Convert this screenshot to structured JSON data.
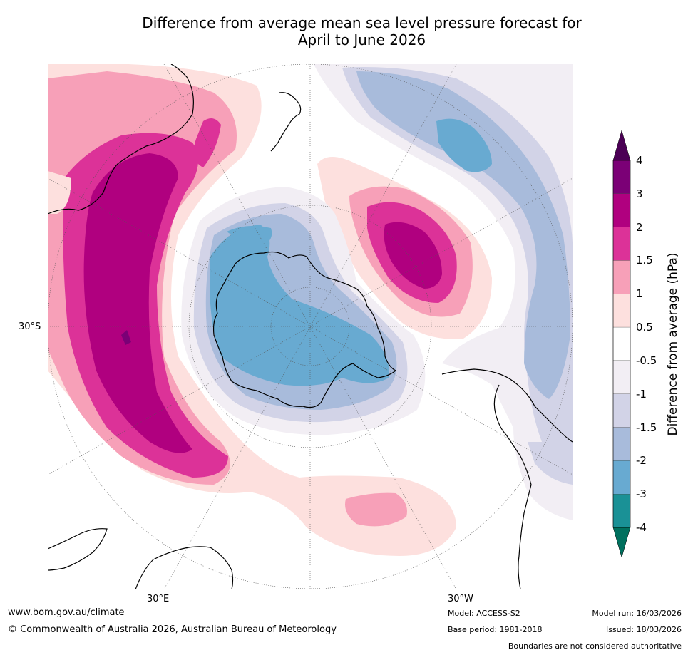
{
  "title_line1": "Difference from average mean sea level pressure forecast for",
  "title_line2": "April to June 2026",
  "map_labels": {
    "lat_30s": "30°S",
    "lon_30e": "30°E",
    "lon_30w": "30°W"
  },
  "colorbar": {
    "label": "Difference from average (hPa)",
    "ticks": [
      "4",
      "3",
      "2",
      "1.5",
      "1",
      "0.5",
      "-0.5",
      "-1",
      "-1.5",
      "-2",
      "-3",
      "-4"
    ],
    "bins": [
      {
        "range": "> 4",
        "color": "#4b0055"
      },
      {
        "range": "3 to 4",
        "color": "#7b0076"
      },
      {
        "range": "2 to 3",
        "color": "#b0007f"
      },
      {
        "range": "1.5 to 2",
        "color": "#dc3298"
      },
      {
        "range": "1 to 1.5",
        "color": "#f7a0b8"
      },
      {
        "range": "0.5 to 1",
        "color": "#fde0de"
      },
      {
        "range": "-0.5 to 0.5",
        "color": "#ffffff"
      },
      {
        "range": "-1 to -0.5",
        "color": "#f2eef4"
      },
      {
        "range": "-1.5 to -1",
        "color": "#d2d3e7"
      },
      {
        "range": "-2 to -1.5",
        "color": "#a8bbdb"
      },
      {
        "range": "-3 to -2",
        "color": "#68aad1"
      },
      {
        "range": "-4 to -3",
        "color": "#1a9196"
      },
      {
        "range": "< -4",
        "color": "#00705e"
      }
    ]
  },
  "footer": {
    "url": "www.bom.gov.au/climate",
    "copyright": "© Commonwealth of Australia 2026, Australian Bureau of Meteorology",
    "model": "Model: ACCESS-S2",
    "base_period": "Base period: 1981-2018",
    "model_run": "Model run: 16/03/2026",
    "issued": "Issued: 18/03/2026",
    "disclaimer": "Boundaries are not considered authoritative"
  }
}
